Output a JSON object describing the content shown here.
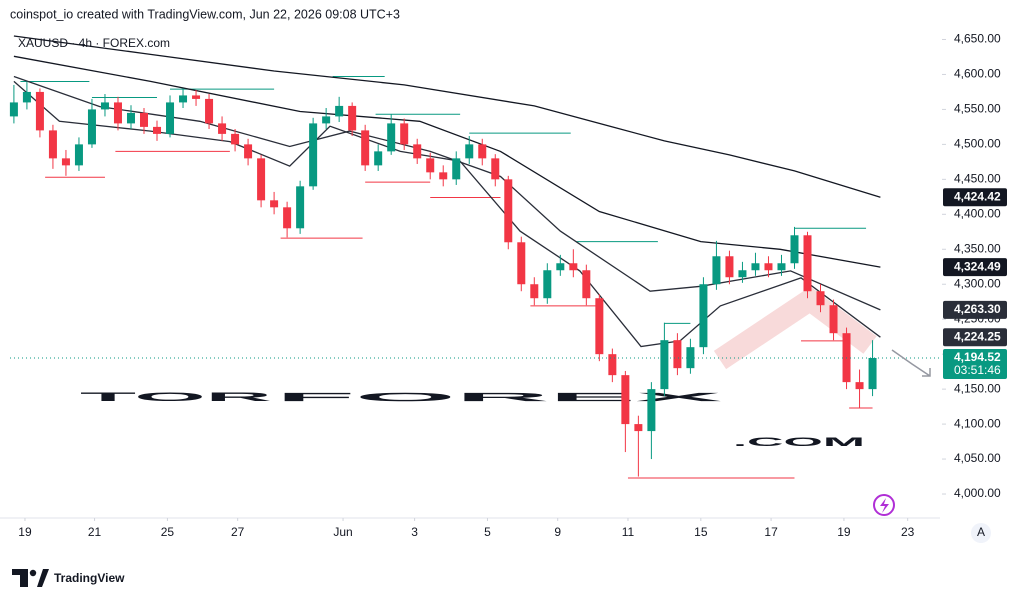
{
  "header": "coinspot_io created with TradingView.com, Jun 22, 2026 09:08 UTC+3",
  "footer_brand": "TradingView",
  "chart_data": {
    "type": "candlestick",
    "title": "XAUUSD · 4h · FOREX.com",
    "watermark": [
      "TOR",
      "FOREX",
      ".COM"
    ],
    "open": [
      4540,
      4560,
      4575,
      4520,
      4480,
      4470,
      4500,
      4550,
      4560,
      4530,
      4545,
      4525,
      4515,
      4560,
      4570,
      4565,
      4530,
      4515,
      4500,
      4480,
      4420,
      4410,
      4380,
      4440,
      4530,
      4540,
      4555,
      4520,
      4470,
      4490,
      4530,
      4500,
      4480,
      4460,
      4450,
      4480,
      4500,
      4480,
      4450,
      4360,
      4300,
      4280,
      4320,
      4330,
      4320,
      4280,
      4200,
      4170,
      4100,
      4090,
      4150,
      4220,
      4180,
      4210,
      4300,
      4340,
      4310,
      4320,
      4330,
      4320,
      4330,
      4370,
      4290,
      4270,
      4230,
      4160,
      4150
    ],
    "high": [
      4585,
      4590,
      4580,
      4528,
      4492,
      4510,
      4565,
      4572,
      4568,
      4556,
      4552,
      4534,
      4570,
      4580,
      4578,
      4572,
      4540,
      4522,
      4508,
      4485,
      4432,
      4418,
      4448,
      4538,
      4552,
      4568,
      4560,
      4528,
      4500,
      4543,
      4537,
      4508,
      4488,
      4470,
      4490,
      4512,
      4508,
      4486,
      4455,
      4368,
      4310,
      4330,
      4342,
      4350,
      4328,
      4286,
      4208,
      4176,
      4112,
      4160,
      4245,
      4230,
      4222,
      4310,
      4362,
      4348,
      4332,
      4345,
      4340,
      4342,
      4382,
      4375,
      4300,
      4278,
      4238,
      4178,
      4220
    ],
    "low": [
      4530,
      4550,
      4510,
      4465,
      4455,
      4462,
      4495,
      4540,
      4520,
      4522,
      4515,
      4505,
      4510,
      4552,
      4555,
      4522,
      4505,
      4490,
      4470,
      4410,
      4400,
      4367,
      4372,
      4435,
      4522,
      4532,
      4512,
      4462,
      4462,
      4485,
      4492,
      4472,
      4450,
      4440,
      4442,
      4472,
      4470,
      4440,
      4350,
      4290,
      4270,
      4272,
      4312,
      4310,
      4270,
      4190,
      4160,
      4060,
      4025,
      4050,
      4140,
      4170,
      4172,
      4200,
      4292,
      4300,
      4302,
      4312,
      4310,
      4312,
      4322,
      4280,
      4260,
      4220,
      4150,
      4123,
      4140
    ],
    "close": [
      4560,
      4575,
      4520,
      4480,
      4470,
      4500,
      4550,
      4560,
      4530,
      4545,
      4525,
      4515,
      4560,
      4570,
      4565,
      4530,
      4515,
      4500,
      4480,
      4420,
      4410,
      4380,
      4440,
      4530,
      4540,
      4555,
      4520,
      4470,
      4490,
      4530,
      4500,
      4480,
      4460,
      4450,
      4480,
      4500,
      4480,
      4450,
      4360,
      4300,
      4280,
      4320,
      4330,
      4320,
      4280,
      4200,
      4170,
      4100,
      4090,
      4150,
      4220,
      4180,
      4210,
      4300,
      4340,
      4310,
      4320,
      4330,
      4320,
      4330,
      4370,
      4290,
      4270,
      4230,
      4160,
      4150,
      4194.52
    ],
    "up_color": "#089981",
    "down_color": "#f23645",
    "xlim": [
      -0.3,
      70.8
    ],
    "xticks": [
      {
        "value": 0.85,
        "label": "19"
      },
      {
        "value": 6.2,
        "label": "21"
      },
      {
        "value": 11.8,
        "label": "25"
      },
      {
        "value": 17.2,
        "label": "27"
      },
      {
        "value": 25.3,
        "label": "Jun"
      },
      {
        "value": 30.8,
        "label": "3"
      },
      {
        "value": 36.4,
        "label": "5"
      },
      {
        "value": 41.8,
        "label": "9"
      },
      {
        "value": 47.2,
        "label": "11"
      },
      {
        "value": 52.8,
        "label": "15"
      },
      {
        "value": 58.2,
        "label": "17"
      },
      {
        "value": 63.8,
        "label": "19"
      },
      {
        "value": 68.7,
        "label": "23"
      }
    ],
    "ylim": [
      3970,
      4675
    ],
    "yticks": [
      {
        "value": 4000,
        "label": "4,000.00"
      },
      {
        "value": 4050,
        "label": "4,050.00"
      },
      {
        "value": 4100,
        "label": "4,100.00"
      },
      {
        "value": 4150,
        "label": "4,150.00"
      },
      {
        "value": 4200,
        "label": "4,200.00"
      },
      {
        "value": 4250,
        "label": "4,250.00"
      },
      {
        "value": 4300,
        "label": "4,300.00"
      },
      {
        "value": 4350,
        "label": "4,350.00"
      },
      {
        "value": 4400,
        "label": "4,400.00"
      },
      {
        "value": 4450,
        "label": "4,450.00"
      },
      {
        "value": 4500,
        "label": "4,500.00"
      },
      {
        "value": 4550,
        "label": "4,550.00"
      },
      {
        "value": 4600,
        "label": "4,600.00"
      },
      {
        "value": 4650,
        "label": "4,650.00"
      }
    ],
    "moving_averages": [
      {
        "color": "#131722",
        "x": [
          0,
          10,
          20,
          30,
          40,
          50,
          55,
          60,
          66.6
        ],
        "values": [
          4655,
          4630,
          4605,
          4585,
          4555,
          4505,
          4485,
          4462,
          4424.42
        ]
      },
      {
        "color": "#131722",
        "x": [
          0,
          10.5,
          22,
          31.2,
          37.4,
          45,
          52.8,
          58.9,
          66.6
        ],
        "values": [
          4626,
          4590,
          4547,
          4533,
          4490,
          4404,
          4361,
          4350,
          4324.49
        ]
      },
      {
        "color": "#2a2e39",
        "x": [
          0,
          6.6,
          14.3,
          21.2,
          25.8,
          32,
          37.4,
          42,
          48.9,
          52.8,
          59.7,
          66.6
        ],
        "values": [
          4597,
          4554,
          4533,
          4497,
          4519,
          4490,
          4454,
          4376,
          4290,
          4297,
          4319,
          4263.3
        ]
      },
      {
        "color": "#2a2e39",
        "x": [
          0,
          3.5,
          10.5,
          16.6,
          21.2,
          24.3,
          29.7,
          34.3,
          38.9,
          43.5,
          48.2,
          51.2,
          54.3,
          60.5,
          66.6
        ],
        "values": [
          4590,
          4533,
          4519,
          4504,
          4469,
          4526,
          4490,
          4476,
          4376,
          4319,
          4211,
          4219,
          4269,
          4309,
          4224.25
        ]
      }
    ],
    "levels": [
      {
        "x": [
          0.5,
          5.8
        ],
        "value": 4590,
        "color": "#089981"
      },
      {
        "x": [
          2.4,
          7
        ],
        "value": 4453,
        "color": "#f23645"
      },
      {
        "x": [
          6,
          11
        ],
        "value": 4567,
        "color": "#089981"
      },
      {
        "x": [
          12,
          20
        ],
        "value": 4579,
        "color": "#089981"
      },
      {
        "x": [
          7.8,
          16.6
        ],
        "value": 4490,
        "color": "#f23645"
      },
      {
        "x": [
          20.5,
          26.8
        ],
        "value": 4366,
        "color": "#f23645"
      },
      {
        "x": [
          24.5,
          28.5
        ],
        "value": 4597,
        "color": "#089981"
      },
      {
        "x": [
          27.8,
          34.3
        ],
        "value": 4543,
        "color": "#089981"
      },
      {
        "x": [
          27,
          32
        ],
        "value": 4446,
        "color": "#f23645"
      },
      {
        "x": [
          32,
          37.4
        ],
        "value": 4424,
        "color": "#f23645"
      },
      {
        "x": [
          35,
          42.8
        ],
        "value": 4516,
        "color": "#089981"
      },
      {
        "x": [
          43.2,
          49.5
        ],
        "value": 4361,
        "color": "#089981"
      },
      {
        "x": [
          39.7,
          45
        ],
        "value": 4269,
        "color": "#f23645"
      },
      {
        "x": [
          47.2,
          60
        ],
        "value": 4023,
        "color": "#f23645"
      },
      {
        "x": [
          50,
          52
        ],
        "value": 4244,
        "color": "#089981"
      },
      {
        "x": [
          60,
          65.5
        ],
        "value": 4380,
        "color": "#089981"
      },
      {
        "x": [
          60.5,
          64
        ],
        "value": 4219,
        "color": "#f23645"
      },
      {
        "x": [
          64.2,
          66
        ],
        "value": 4123,
        "color": "#f23645"
      }
    ],
    "price_tags": [
      {
        "value": 4424.42,
        "label": "4,424.42",
        "color": "#131722"
      },
      {
        "value": 4324.49,
        "label": "4,324.49",
        "color": "#131722"
      },
      {
        "value": 4263.3,
        "label": "4,263.30",
        "color": "#2a2e39"
      },
      {
        "value": 4224.25,
        "label": "4,224.25",
        "color": "#2a2e39"
      },
      {
        "value": 4194.52,
        "label": "4,194.52",
        "color": "#089981",
        "countdown": "03:51:46"
      }
    ],
    "auto_button": "A"
  }
}
